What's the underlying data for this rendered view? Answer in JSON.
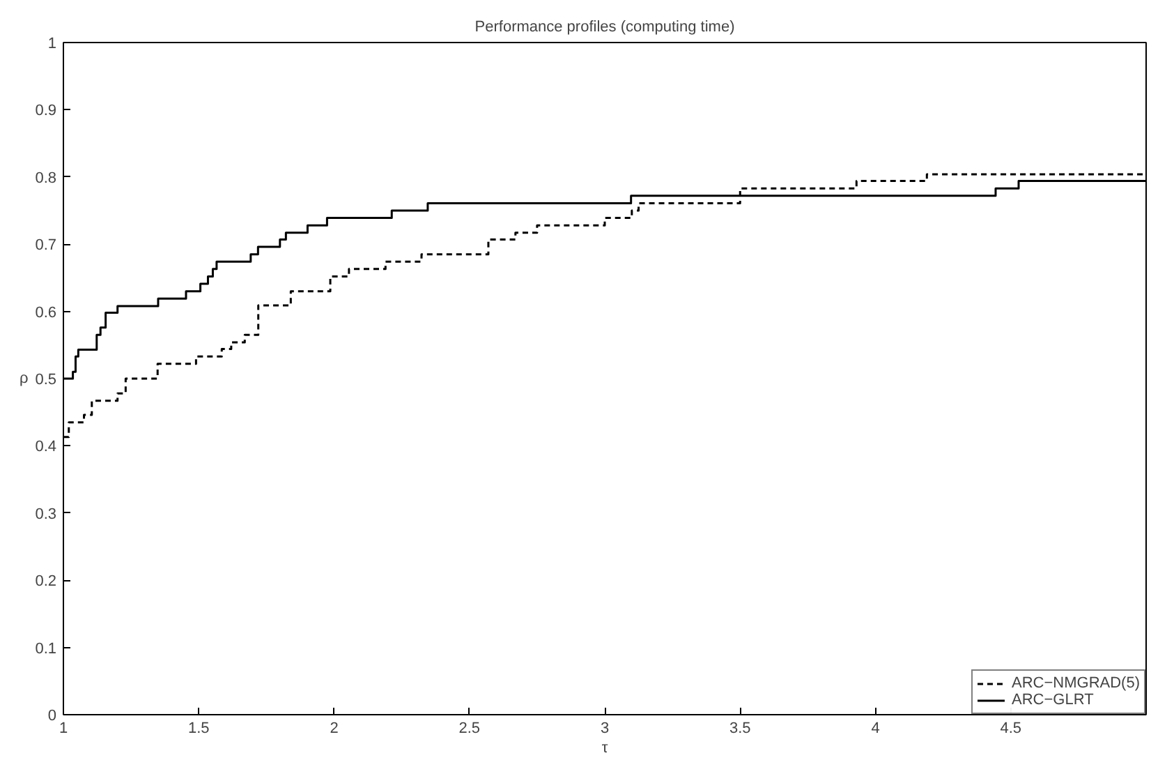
{
  "chart_data": {
    "type": "step",
    "title": "Performance profiles (computing time)",
    "xlabel": "τ",
    "ylabel": "ρ",
    "xlim": [
      1,
      5
    ],
    "ylim": [
      0,
      1
    ],
    "xticks": [
      1,
      1.5,
      2,
      2.5,
      3,
      3.5,
      4,
      4.5
    ],
    "yticks": [
      0,
      0.1,
      0.2,
      0.3,
      0.4,
      0.5,
      0.6,
      0.7,
      0.8,
      0.9,
      1
    ],
    "grid": false,
    "legend": "bottom right",
    "marker": "none",
    "series": [
      {
        "name": "ARC−NMGRAD(5)",
        "color": "#000000",
        "line_style": "dashed",
        "x": [
          1,
          1.02,
          1.076,
          1.105,
          1.2,
          1.23,
          1.348,
          1.49,
          1.585,
          1.62,
          1.67,
          1.72,
          1.84,
          1.986,
          2.055,
          2.19,
          2.323,
          2.57,
          2.67,
          2.75,
          3.0,
          3.1,
          3.125,
          3.5,
          3.93,
          4.19,
          5
        ],
        "values": [
          0.413,
          0.435,
          0.446,
          0.467,
          0.478,
          0.5,
          0.522,
          0.533,
          0.544,
          0.554,
          0.565,
          0.609,
          0.63,
          0.652,
          0.663,
          0.674,
          0.685,
          0.707,
          0.717,
          0.728,
          0.739,
          0.75,
          0.761,
          0.783,
          0.794,
          0.804,
          0.804
        ]
      },
      {
        "name": "ARC−GLRT",
        "color": "#000000",
        "line_style": "solid",
        "x": [
          1,
          1.035,
          1.045,
          1.055,
          1.123,
          1.137,
          1.156,
          1.2,
          1.35,
          1.453,
          1.506,
          1.534,
          1.552,
          1.566,
          1.692,
          1.719,
          1.8,
          1.822,
          1.902,
          1.974,
          2.213,
          2.346,
          3.097,
          4.444,
          4.529,
          5
        ],
        "values": [
          0.5,
          0.51,
          0.533,
          0.543,
          0.565,
          0.576,
          0.598,
          0.608,
          0.619,
          0.63,
          0.641,
          0.652,
          0.663,
          0.674,
          0.685,
          0.696,
          0.707,
          0.717,
          0.728,
          0.739,
          0.75,
          0.761,
          0.772,
          0.783,
          0.794,
          0.794
        ]
      }
    ]
  }
}
